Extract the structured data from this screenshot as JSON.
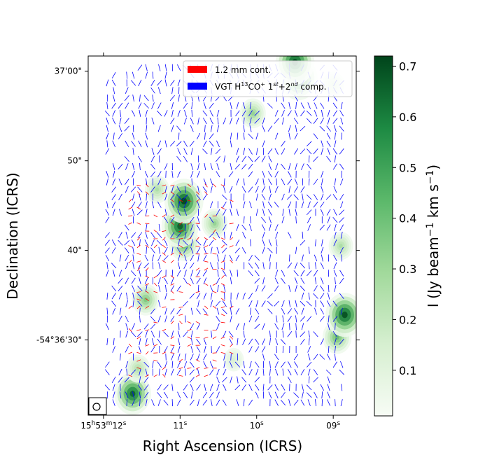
{
  "chart_data": {
    "type": "heatmap",
    "title": "",
    "xlabel": "Right Ascension (ICRS)",
    "ylabel": "Declination (ICRS)",
    "x_ticks": [
      {
        "value": 12,
        "pre": "15",
        "sup1": "h",
        "mid": "53",
        "sup2": "m",
        "post": "12",
        "sup3": "s"
      },
      {
        "value": 11,
        "pre": "",
        "sup1": "",
        "mid": "",
        "sup2": "",
        "post": "11",
        "sup3": "s"
      },
      {
        "value": 10,
        "pre": "",
        "sup1": "",
        "mid": "",
        "sup2": "",
        "post": "10",
        "sup3": "s"
      },
      {
        "value": 9,
        "pre": "",
        "sup1": "",
        "mid": "",
        "sup2": "",
        "post": "09",
        "sup3": "s"
      }
    ],
    "y_ticks": [
      {
        "value": 30,
        "label": "-54°36'30\""
      },
      {
        "value": 40,
        "label": "40\""
      },
      {
        "value": 50,
        "label": "50\""
      },
      {
        "value": 60,
        "label": "37'00\""
      }
    ],
    "xlim": [
      12.2,
      8.7
    ],
    "ylim": [
      61.7,
      21.6
    ],
    "colorbar": {
      "label_main": "I (Jy beam",
      "label_sup1": "−1",
      "label_mid": " km s",
      "label_sup2": "−1",
      "label_end": ")",
      "min": 0.01,
      "max": 0.72,
      "ticks": [
        0.1,
        0.2,
        0.3,
        0.4,
        0.5,
        0.6,
        0.7
      ],
      "colors": [
        "#f7fcf5",
        "#c7e9c0",
        "#74c476",
        "#238b45",
        "#00441b"
      ]
    },
    "legend": {
      "position": "upper-right",
      "entries": [
        {
          "label": "1.2 mm cont.",
          "color": "#ff0000"
        },
        {
          "label_pre": "VGT H",
          "sup1": "13",
          "label_mid": "CO",
          "sup2": "+",
          "label_mid2": " 1",
          "sup3": "st",
          "label_mid3": "+2",
          "sup4": "nd",
          "label_end": " comp.",
          "color": "#0000ff"
        }
      ]
    },
    "intensity_peaks": [
      {
        "ra": 11.62,
        "dec": 24.0,
        "peak": 0.65
      },
      {
        "ra": 11.45,
        "dec": 34.5,
        "peak": 0.35
      },
      {
        "ra": 11.55,
        "dec": 26.8,
        "peak": 0.25
      },
      {
        "ra": 10.95,
        "dec": 40.8,
        "peak": 0.45
      },
      {
        "ra": 11.0,
        "dec": 42.7,
        "peak": 0.66
      },
      {
        "ra": 10.95,
        "dec": 45.5,
        "peak": 0.72
      },
      {
        "ra": 10.55,
        "dec": 43.0,
        "peak": 0.3
      },
      {
        "ra": 11.3,
        "dec": 46.8,
        "peak": 0.25
      },
      {
        "ra": 8.95,
        "dec": 30.3,
        "peak": 0.4
      },
      {
        "ra": 8.85,
        "dec": 32.8,
        "peak": 0.7
      },
      {
        "ra": 8.9,
        "dec": 40.5,
        "peak": 0.25
      },
      {
        "ra": 9.45,
        "dec": 59.2,
        "peak": 0.68
      },
      {
        "ra": 9.5,
        "dec": 61.0,
        "peak": 0.72
      },
      {
        "ra": 10.05,
        "dec": 55.3,
        "peak": 0.3
      },
      {
        "ra": 10.3,
        "dec": 27.8,
        "peak": 0.12
      },
      {
        "ra": 9.0,
        "dec": 58.5,
        "peak": 0.18
      }
    ],
    "vectors_blue_region": {
      "ra_min": 8.85,
      "ra_max": 11.95,
      "dec_min": 23.0,
      "dec_max": 61.0
    },
    "vectors_red_region": {
      "ra_min": 10.3,
      "ra_max": 11.65,
      "dec_min": 26.0,
      "dec_max": 48.0
    },
    "beam_symbol": "circle"
  }
}
